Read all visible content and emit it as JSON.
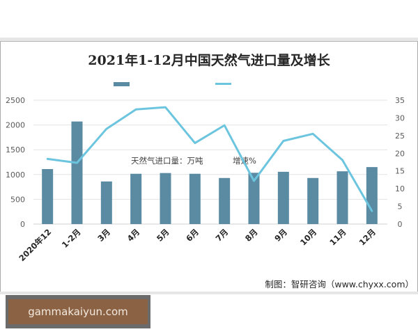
{
  "chart_data": {
    "type": "bar",
    "title": "2021年1-12月中国天然气进口量及增长",
    "categories": [
      "2020年12",
      "1-2月",
      "3月",
      "4月",
      "5月",
      "6月",
      "7月",
      "8月",
      "9月",
      "10月",
      "11月",
      "12月"
    ],
    "series": [
      {
        "name": "天然气进口量：万吨",
        "type": "bar",
        "axis": "left",
        "color": "#5b8ba3",
        "values": [
          1110,
          2070,
          860,
          1015,
          1030,
          1015,
          930,
          1035,
          1055,
          930,
          1065,
          1150
        ]
      },
      {
        "name": "增速%",
        "type": "line",
        "axis": "right",
        "color": "#6cc5df",
        "values": [
          18.4,
          17.3,
          26.9,
          32.4,
          33.0,
          22.9,
          27.9,
          12.2,
          23.5,
          25.5,
          18.1,
          3.7
        ]
      }
    ],
    "left_axis": {
      "ticks": [
        0,
        500,
        1000,
        1500,
        2000,
        2500
      ],
      "ylim": [
        0,
        2500
      ]
    },
    "right_axis": {
      "ticks": [
        0,
        5,
        10,
        15,
        20,
        25,
        30,
        35
      ],
      "ylim": [
        0,
        35
      ]
    },
    "grid": true,
    "legend_position": "top",
    "xlabel": "",
    "ylabel": ""
  },
  "legend": {
    "bar_label": "天然气进口量：万吨",
    "line_label": "增速%"
  },
  "source": "制图：智研咨询（www.chyxx.com）",
  "watermark": "gammakaiyun.com"
}
